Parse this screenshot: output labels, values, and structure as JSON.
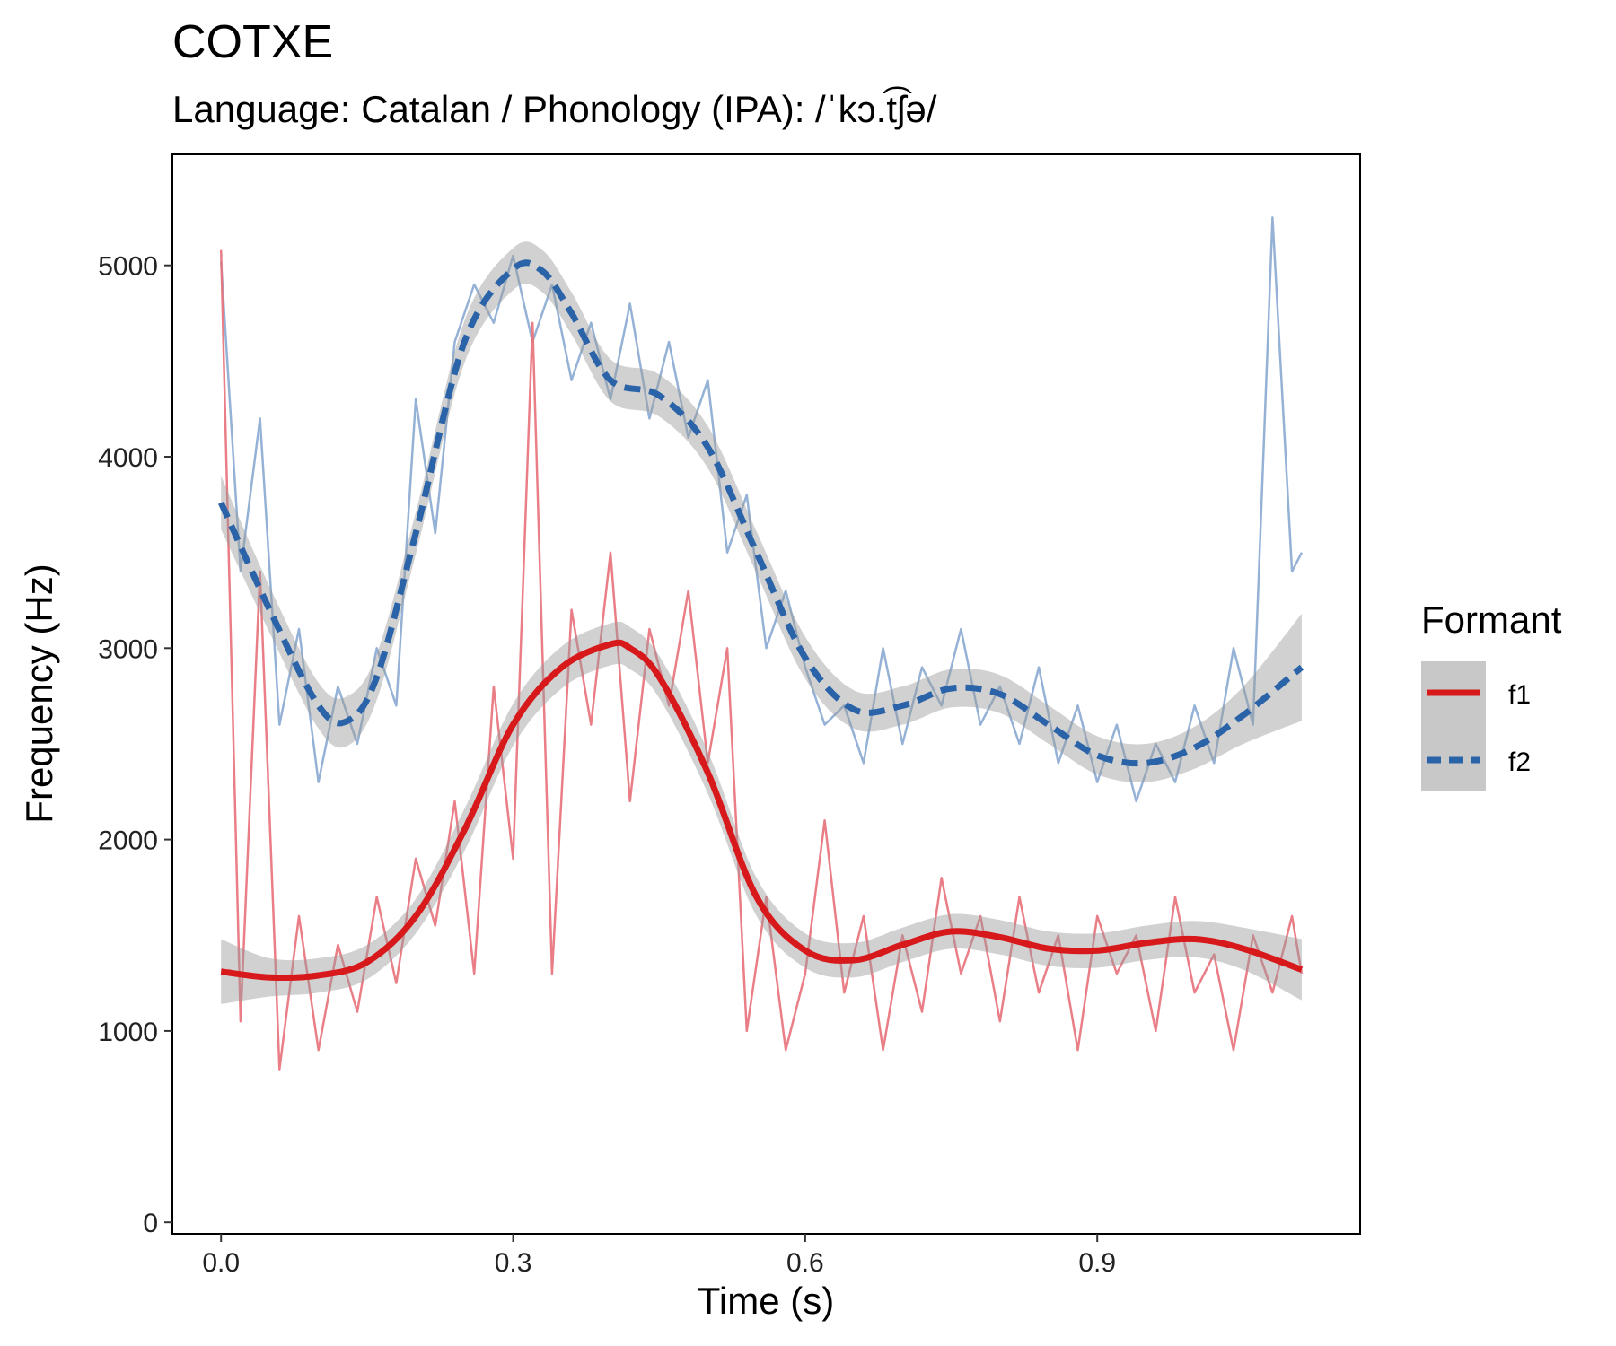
{
  "chart_data": {
    "type": "line",
    "title": "COTXE",
    "subtitle": "Language: Catalan / Phonology (IPA): /ˈkɔ.t͡ʃə/",
    "xlabel": "Time (s)",
    "ylabel": "Frequency (Hz)",
    "xlim": [
      -0.05,
      1.17
    ],
    "ylim": [
      -60,
      5580
    ],
    "x_ticks": [
      0.0,
      0.3,
      0.6,
      0.9
    ],
    "x_tick_labels": [
      "0.0",
      "0.3",
      "0.6",
      "0.9"
    ],
    "y_ticks": [
      0,
      1000,
      2000,
      3000,
      4000,
      5000
    ],
    "y_tick_labels": [
      "0",
      "1000",
      "2000",
      "3000",
      "4000",
      "5000"
    ],
    "grid": false,
    "legend": {
      "title": "Formant",
      "position": "right",
      "entries": [
        {
          "label": "f1",
          "color": "#d7191c",
          "linestyle": "solid"
        },
        {
          "label": "f2",
          "color": "#2b63a8",
          "linestyle": "dashed"
        }
      ]
    },
    "series": [
      {
        "name": "f1",
        "raw_color": "#e8707a",
        "smooth_color": "#d7191c",
        "linestyle": "solid",
        "raw_x": [
          0.0,
          0.02,
          0.04,
          0.06,
          0.08,
          0.1,
          0.12,
          0.14,
          0.16,
          0.18,
          0.2,
          0.22,
          0.24,
          0.26,
          0.28,
          0.3,
          0.32,
          0.34,
          0.36,
          0.38,
          0.4,
          0.42,
          0.44,
          0.46,
          0.48,
          0.5,
          0.52,
          0.54,
          0.56,
          0.58,
          0.6,
          0.62,
          0.64,
          0.66,
          0.68,
          0.7,
          0.72,
          0.74,
          0.76,
          0.78,
          0.8,
          0.82,
          0.84,
          0.86,
          0.88,
          0.9,
          0.92,
          0.94,
          0.96,
          0.98,
          1.0,
          1.02,
          1.04,
          1.06,
          1.08,
          1.1,
          1.11
        ],
        "raw_y": [
          5080,
          1050,
          3400,
          800,
          1600,
          900,
          1450,
          1100,
          1700,
          1250,
          1900,
          1550,
          2200,
          1300,
          2800,
          1900,
          4700,
          1300,
          3200,
          2600,
          3500,
          2200,
          3100,
          2700,
          3300,
          2400,
          3000,
          1000,
          1700,
          900,
          1300,
          2100,
          1200,
          1600,
          900,
          1500,
          1100,
          1800,
          1300,
          1600,
          1050,
          1700,
          1200,
          1500,
          900,
          1600,
          1300,
          1500,
          1000,
          1700,
          1200,
          1400,
          900,
          1500,
          1200,
          1600,
          1300
        ],
        "smooth_x": [
          0.0,
          0.05,
          0.1,
          0.15,
          0.2,
          0.25,
          0.3,
          0.35,
          0.4,
          0.42,
          0.45,
          0.5,
          0.55,
          0.6,
          0.65,
          0.7,
          0.75,
          0.8,
          0.85,
          0.9,
          0.95,
          1.0,
          1.05,
          1.11
        ],
        "smooth_y": [
          1310,
          1280,
          1290,
          1360,
          1600,
          2050,
          2600,
          2900,
          3020,
          3000,
          2850,
          2350,
          1700,
          1420,
          1370,
          1450,
          1520,
          1490,
          1430,
          1420,
          1460,
          1480,
          1430,
          1320
        ],
        "ci_halfwidth": [
          170,
          100,
          90,
          90,
          90,
          110,
          110,
          110,
          110,
          110,
          110,
          110,
          100,
          90,
          90,
          90,
          90,
          90,
          90,
          90,
          90,
          95,
          110,
          160
        ]
      },
      {
        "name": "f2",
        "raw_color": "#8aaad2",
        "smooth_color": "#2b63a8",
        "linestyle": "dashed",
        "raw_x": [
          0.0,
          0.02,
          0.04,
          0.06,
          0.08,
          0.1,
          0.12,
          0.14,
          0.16,
          0.18,
          0.2,
          0.22,
          0.24,
          0.26,
          0.28,
          0.3,
          0.32,
          0.34,
          0.36,
          0.38,
          0.4,
          0.42,
          0.44,
          0.46,
          0.48,
          0.5,
          0.52,
          0.54,
          0.56,
          0.58,
          0.6,
          0.62,
          0.64,
          0.66,
          0.68,
          0.7,
          0.72,
          0.74,
          0.76,
          0.78,
          0.8,
          0.82,
          0.84,
          0.86,
          0.88,
          0.9,
          0.92,
          0.94,
          0.96,
          0.98,
          1.0,
          1.02,
          1.04,
          1.06,
          1.08,
          1.1,
          1.11
        ],
        "raw_y": [
          5020,
          3400,
          4200,
          2600,
          3100,
          2300,
          2800,
          2500,
          3000,
          2700,
          4300,
          3600,
          4600,
          4900,
          4700,
          5050,
          4600,
          4900,
          4400,
          4700,
          4300,
          4800,
          4200,
          4600,
          4100,
          4400,
          3500,
          3800,
          3000,
          3300,
          2900,
          2600,
          2700,
          2400,
          3000,
          2500,
          2900,
          2700,
          3100,
          2600,
          2800,
          2500,
          2900,
          2400,
          2700,
          2300,
          2600,
          2200,
          2500,
          2300,
          2700,
          2400,
          3000,
          2600,
          5250,
          3400,
          3500
        ],
        "smooth_x": [
          0.0,
          0.05,
          0.1,
          0.13,
          0.16,
          0.2,
          0.25,
          0.3,
          0.33,
          0.36,
          0.4,
          0.45,
          0.5,
          0.55,
          0.6,
          0.65,
          0.7,
          0.75,
          0.8,
          0.85,
          0.9,
          0.95,
          1.0,
          1.05,
          1.11
        ],
        "smooth_y": [
          3760,
          3200,
          2700,
          2620,
          2850,
          3600,
          4600,
          4980,
          4970,
          4750,
          4400,
          4320,
          4050,
          3500,
          2950,
          2680,
          2700,
          2790,
          2760,
          2600,
          2440,
          2400,
          2480,
          2650,
          2900
        ],
        "ci_halfwidth": [
          140,
          120,
          120,
          130,
          120,
          110,
          110,
          110,
          110,
          110,
          110,
          110,
          110,
          110,
          110,
          100,
          100,
          100,
          100,
          100,
          100,
          100,
          110,
          150,
          280
        ]
      }
    ]
  }
}
